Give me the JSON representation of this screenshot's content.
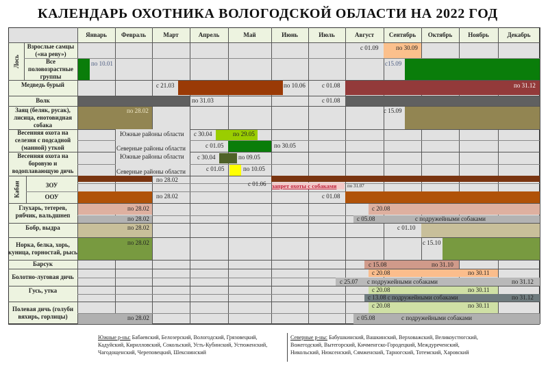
{
  "title": "КАЛЕНДАРЬ ОХОТНИКА ВОЛОГОДСКОЙ ОБЛАСТИ НА 2022 ГОД",
  "months": [
    "Январь",
    "Февраль",
    "Март",
    "Апрель",
    "Май",
    "Июнь",
    "Июль",
    "Август",
    "Сентябрь",
    "Октябрь",
    "Ноябрь",
    "Декабрь"
  ],
  "rows": {
    "moose": "Лось",
    "moose_males": "Взрослые самцы («на реву»)",
    "moose_all": "Все половозрастные группы",
    "bear": "Медведь бурый",
    "wolf": "Волк",
    "hare": "Заяц (беляк, русак), лисица, енотовидная собака",
    "spring_drake": "Весенняя охота на селезня с подсадной (манной) уткой",
    "spring_upland": "Весенняя охота на боровую и водоплавающую дичь",
    "boar": "Кабан",
    "zou": "ЗОУ",
    "oou": "ООУ",
    "grouse": "Глухарь, тетерев, рябчик, вальдшнеп",
    "beaver": "Бобр, выдра",
    "mink": "Норка, белка, хорь, куница, горностай, рысь",
    "badger": "Барсук",
    "marsh": "Болотно-луговая дичь",
    "goose": "Гусь, утка",
    "field": "Полевая дичь (голуби вяхирь, горлицы)"
  },
  "regions": {
    "south": "Южные районы области",
    "north": "Северные районы области"
  },
  "labels": {
    "m1a": "с 01.09",
    "m1b": "по 30.09",
    "m2a": "по 10.01",
    "m2b": "с15.09",
    "b1": "с 21.03",
    "b2": "по 10.06",
    "b3": "с 01.08",
    "b4": "по 31.12",
    "w1": "по 31.03",
    "w2": "с 01.08",
    "h1": "по 28.02",
    "h2": "с 15.09",
    "d1": "с 30.04",
    "d2": "по 29.05",
    "d3": "с 01.05",
    "d4": "по 30.05",
    "u1": "с 30.04",
    "u2": "по 09.05",
    "u3": "с 01.05",
    "u4": "по 10.05",
    "z1": "по 28.02",
    "z2": "с 01.06",
    "z3": "запрет охоты с собаками",
    "z4": "по 31.07",
    "o1": "по 28.02",
    "o2": "с 01.08",
    "g1": "по 28.02",
    "g2": "по 28.02",
    "g3": "с 20.08",
    "g4": "с 05.08",
    "g5": "с подружейными собаками",
    "bv1": "по 28.02",
    "bv2": "с 01.10",
    "n1": "по 28.02",
    "n2": "с 15.10",
    "bs1": "с 15.08",
    "bs2": "по 31.10",
    "ml1": "с 20.08",
    "ml2": "по 30.11",
    "ml3": "с 25.07",
    "ml4": "с подружейными собаками",
    "ml5": "по 31.12",
    "gs1": "с 20.08",
    "gs2": "по 30.11",
    "gs3": "с 13.08 с подружейными собаками",
    "gs4": "по 31.12",
    "f1": "с 20.08",
    "f2": "по 30.11",
    "f3": "по 28.02",
    "f4": "с 05.08",
    "f5": "с подружейными собаками"
  },
  "legend": {
    "south_title": "Южные р-ны:",
    "south_text": "Бабаевский, Белозерский, Вологодский, Грязовецкий, Кадуйский, Кирилловский, Сокольский, Усть-Кубинский, Устюженский, Чагодощенский, Череповецкий, Шекснинский",
    "north_title": "Северные р-ны:",
    "north_text": "Бабушкинский, Вашкинский, Верховажский, Великоустюгский, Вожегодский, Вытегорский, Кичменгско-Городецкий, Междуреченский, Никольский, Нюксенский, Сямженский, Тарногский, Тотемский, Харовский"
  },
  "colors": {
    "cell": "#e1e1e1",
    "label_cell": "#edf3e0",
    "green": "#0a7d0a",
    "bear": "#9a3a06",
    "bear_autumn": "#933a3a",
    "wolf": "#606060",
    "hare": "#928552",
    "boar": "#7a3511",
    "boar_oou": "#b05208",
    "ban": "#c0203a"
  }
}
